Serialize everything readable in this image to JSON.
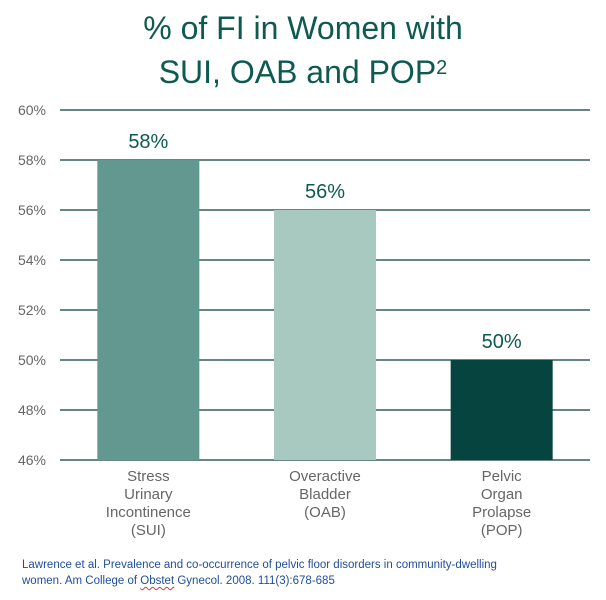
{
  "title": {
    "line1": "% of FI in Women with",
    "line2": "SUI, OAB and POP",
    "superscript": "2"
  },
  "footnote": {
    "line1": "Lawrence et al. Prevalence and co-occurrence of pelvic floor disorders in community-dwelling",
    "line2_pre": "women.  Am College of ",
    "line2_flag": "Obstet",
    "line2_post": " Gynecol. 2008. 111(3):678-685"
  },
  "chart_data": {
    "type": "bar",
    "categories": [
      [
        "Stress",
        "Urinary",
        "Incontinence",
        "(SUI)"
      ],
      [
        "Overactive",
        "Bladder",
        "(OAB)"
      ],
      [
        "Pelvic",
        "Organ",
        "Prolapse",
        "(POP)"
      ]
    ],
    "values": [
      58,
      56,
      50
    ],
    "data_labels": [
      "58%",
      "56%",
      "50%"
    ],
    "colors": [
      "#62988f",
      "#a8c9c0",
      "#064440"
    ],
    "ylim": [
      46,
      60
    ],
    "yticks": [
      46,
      48,
      50,
      52,
      54,
      56,
      58,
      60
    ],
    "ytick_labels": [
      "46%",
      "48%",
      "50%",
      "52%",
      "54%",
      "56%",
      "58%",
      "60%"
    ],
    "grid": true,
    "gridline_color": "#0b3d3a",
    "axis_text_color": "#666666",
    "label_color": "#0e5a50"
  }
}
